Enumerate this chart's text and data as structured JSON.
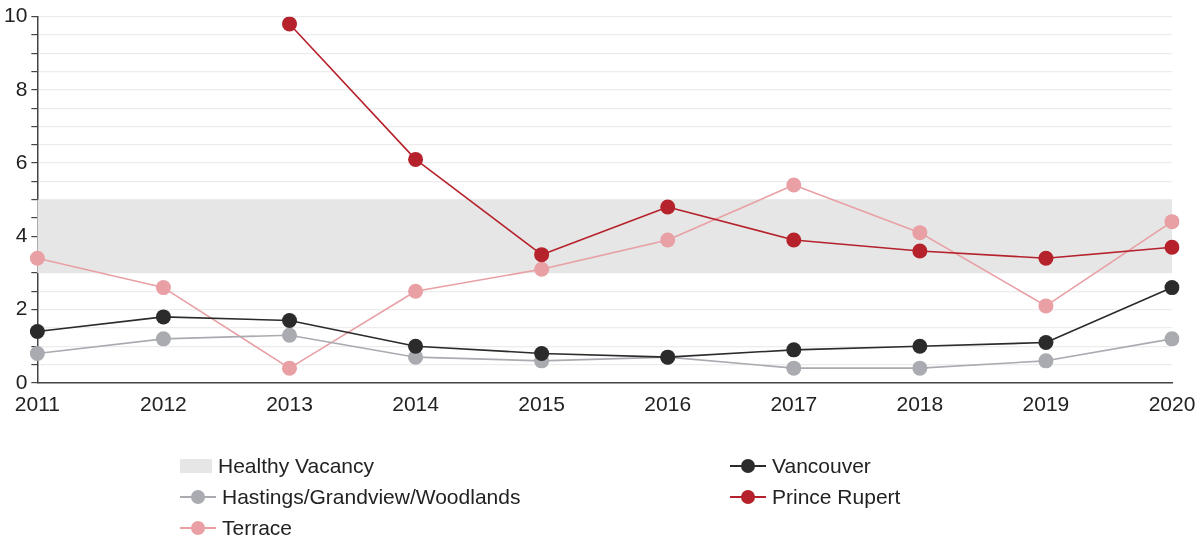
{
  "chart_data": {
    "type": "line",
    "categories": [
      "2011",
      "2012",
      "2013",
      "2014",
      "2015",
      "2016",
      "2017",
      "2018",
      "2019",
      "2020"
    ],
    "series": [
      {
        "name": "Vancouver",
        "color": "#2b2b2b",
        "values": [
          1.4,
          1.8,
          1.7,
          1.0,
          0.8,
          0.7,
          0.9,
          1.0,
          1.1,
          2.6
        ]
      },
      {
        "name": "Hastings/Grandview/Woodlands",
        "color": "#a9abb0",
        "values": [
          0.8,
          1.2,
          1.3,
          0.7,
          0.6,
          0.7,
          0.4,
          0.4,
          0.6,
          1.2
        ]
      },
      {
        "name": "Prince Rupert",
        "color": "#b5222b",
        "values": [
          null,
          null,
          9.8,
          6.1,
          3.5,
          4.8,
          3.9,
          3.6,
          3.4,
          3.7
        ]
      },
      {
        "name": "Terrace",
        "color": "#e8a0a5",
        "values": [
          3.4,
          2.6,
          0.4,
          2.5,
          3.1,
          3.9,
          5.4,
          4.1,
          2.1,
          4.4
        ]
      }
    ],
    "bands": [
      {
        "axis": "y",
        "from": 3,
        "to": 5,
        "label": "Healthy Vacancy",
        "color": "#e6e6e6"
      }
    ],
    "ylim": [
      0,
      10
    ],
    "yticks": [
      0,
      {
        "value": 0.5,
        "label": null
      },
      2,
      {
        "value": 1,
        "label": null
      },
      {
        "value": 1.5,
        "label": null
      },
      {
        "value": 2.5,
        "label": null
      },
      {
        "value": 3,
        "label": null
      },
      {
        "value": 3.5,
        "label": null
      },
      4,
      {
        "value": 4.5,
        "label": null
      },
      {
        "value": 5,
        "label": null
      },
      {
        "value": 5.5,
        "label": null
      },
      6,
      {
        "value": 6.5,
        "label": null
      },
      {
        "value": 7,
        "label": null
      },
      {
        "value": 7.5,
        "label": null
      },
      8,
      {
        "value": 8.5,
        "label": null
      },
      {
        "value": 9,
        "label": null
      },
      {
        "value": 9.5,
        "label": null
      },
      10
    ],
    "grid": "y",
    "legend": "bottom",
    "marker": "circle",
    "line_style": "solid"
  }
}
